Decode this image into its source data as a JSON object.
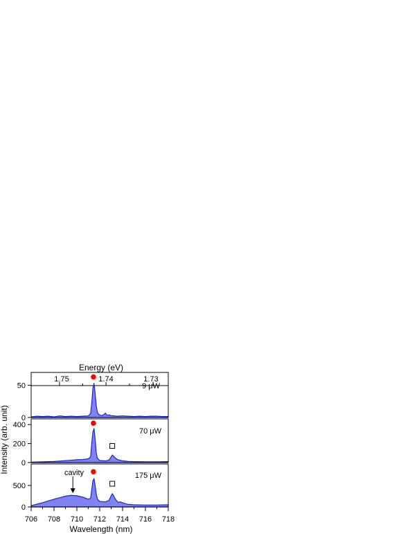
{
  "chart_data": {
    "type": "area",
    "xlabel": "Wavelength (nm)",
    "ylabel": "Intensity (arb. unit)",
    "top_axis_label": "Energy (eV)",
    "x_ticks": [
      "706",
      "708",
      "710",
      "712",
      "714",
      "716",
      "718"
    ],
    "top_ticks": [
      "1.75",
      "1.74",
      "1.73"
    ],
    "xlim": [
      706,
      718
    ],
    "colors": {
      "fill": "#7f82ef",
      "line": "#1d23d6",
      "marker_circle": "#ff0000"
    },
    "panels": [
      {
        "label": "9 μW",
        "ylim": [
          0,
          70
        ],
        "y_ticks": [
          "0",
          "50"
        ],
        "series": [
          {
            "values": [
              [
                706.0,
                1
              ],
              [
                706.5,
                2
              ],
              [
                707.0,
                1.5
              ],
              [
                707.5,
                2
              ],
              [
                708.0,
                1
              ],
              [
                708.5,
                2.5
              ],
              [
                709.0,
                1.5
              ],
              [
                709.5,
                2
              ],
              [
                710.0,
                1.5
              ],
              [
                710.5,
                2
              ],
              [
                711.0,
                2.5
              ],
              [
                711.2,
                6
              ],
              [
                711.3,
                22
              ],
              [
                711.4,
                45
              ],
              [
                711.5,
                53
              ],
              [
                711.6,
                38
              ],
              [
                711.7,
                18
              ],
              [
                711.8,
                8
              ],
              [
                711.9,
                5
              ],
              [
                712.0,
                4
              ],
              [
                712.2,
                3
              ],
              [
                712.4,
                5
              ],
              [
                712.5,
                7
              ],
              [
                712.6,
                4
              ],
              [
                712.8,
                4
              ],
              [
                713.0,
                3
              ],
              [
                713.5,
                2
              ],
              [
                714.0,
                2.5
              ],
              [
                714.5,
                2
              ],
              [
                715.0,
                1.5
              ],
              [
                715.5,
                2
              ],
              [
                716.0,
                1.5
              ],
              [
                716.5,
                2
              ],
              [
                717.0,
                2
              ],
              [
                717.5,
                1.5
              ],
              [
                718.0,
                1.5
              ]
            ]
          }
        ],
        "markers": [
          {
            "symbol": "circle",
            "x": 711.45,
            "y": 63
          }
        ]
      },
      {
        "label": "70 μW",
        "ylim": [
          0,
          460
        ],
        "y_ticks": [
          "0",
          "200",
          "400"
        ],
        "series": [
          {
            "values": [
              [
                706.0,
                5
              ],
              [
                707.0,
                8
              ],
              [
                708.0,
                12
              ],
              [
                709.0,
                20
              ],
              [
                709.5,
                25
              ],
              [
                710.0,
                30
              ],
              [
                710.5,
                32
              ],
              [
                711.0,
                40
              ],
              [
                711.2,
                60
              ],
              [
                711.3,
                200
              ],
              [
                711.4,
                320
              ],
              [
                711.5,
                360
              ],
              [
                711.6,
                250
              ],
              [
                711.7,
                100
              ],
              [
                711.8,
                45
              ],
              [
                712.0,
                22
              ],
              [
                712.5,
                18
              ],
              [
                712.8,
                25
              ],
              [
                713.0,
                60
              ],
              [
                713.1,
                80
              ],
              [
                713.2,
                70
              ],
              [
                713.4,
                45
              ],
              [
                713.6,
                30
              ],
              [
                714.0,
                18
              ],
              [
                714.5,
                12
              ],
              [
                715.0,
                10
              ],
              [
                716.0,
                8
              ],
              [
                717.0,
                8
              ],
              [
                718.0,
                10
              ]
            ]
          }
        ],
        "markers": [
          {
            "symbol": "circle",
            "x": 711.45,
            "y": 415
          },
          {
            "symbol": "square",
            "x": 713.1,
            "y": 175
          }
        ]
      },
      {
        "label": "175 μW",
        "ylim": [
          0,
          1000
        ],
        "y_ticks": [
          "0",
          "500"
        ],
        "series": [
          {
            "values": [
              [
                706.0,
                30
              ],
              [
                707.0,
                100
              ],
              [
                708.0,
                180
              ],
              [
                709.0,
                250
              ],
              [
                709.5,
                270
              ],
              [
                710.0,
                260
              ],
              [
                710.5,
                230
              ],
              [
                711.0,
                180
              ],
              [
                711.2,
                200
              ],
              [
                711.3,
                400
              ],
              [
                711.4,
                600
              ],
              [
                711.5,
                660
              ],
              [
                711.6,
                500
              ],
              [
                711.7,
                300
              ],
              [
                711.8,
                180
              ],
              [
                712.0,
                130
              ],
              [
                712.5,
                120
              ],
              [
                712.8,
                150
              ],
              [
                713.0,
                260
              ],
              [
                713.1,
                310
              ],
              [
                713.2,
                270
              ],
              [
                713.4,
                170
              ],
              [
                713.6,
                110
              ],
              [
                713.8,
                120
              ],
              [
                714.0,
                100
              ],
              [
                714.2,
                80
              ],
              [
                714.5,
                60
              ],
              [
                715.0,
                50
              ],
              [
                716.0,
                45
              ],
              [
                717.0,
                45
              ],
              [
                718.0,
                50
              ]
            ]
          }
        ],
        "markers": [
          {
            "symbol": "circle",
            "x": 711.45,
            "y": 820
          },
          {
            "symbol": "square",
            "x": 713.1,
            "y": 540
          }
        ],
        "annotation": {
          "text": "cavity",
          "x": 709.65,
          "y_text": 710,
          "y_arrow_tip": 320
        }
      }
    ]
  }
}
